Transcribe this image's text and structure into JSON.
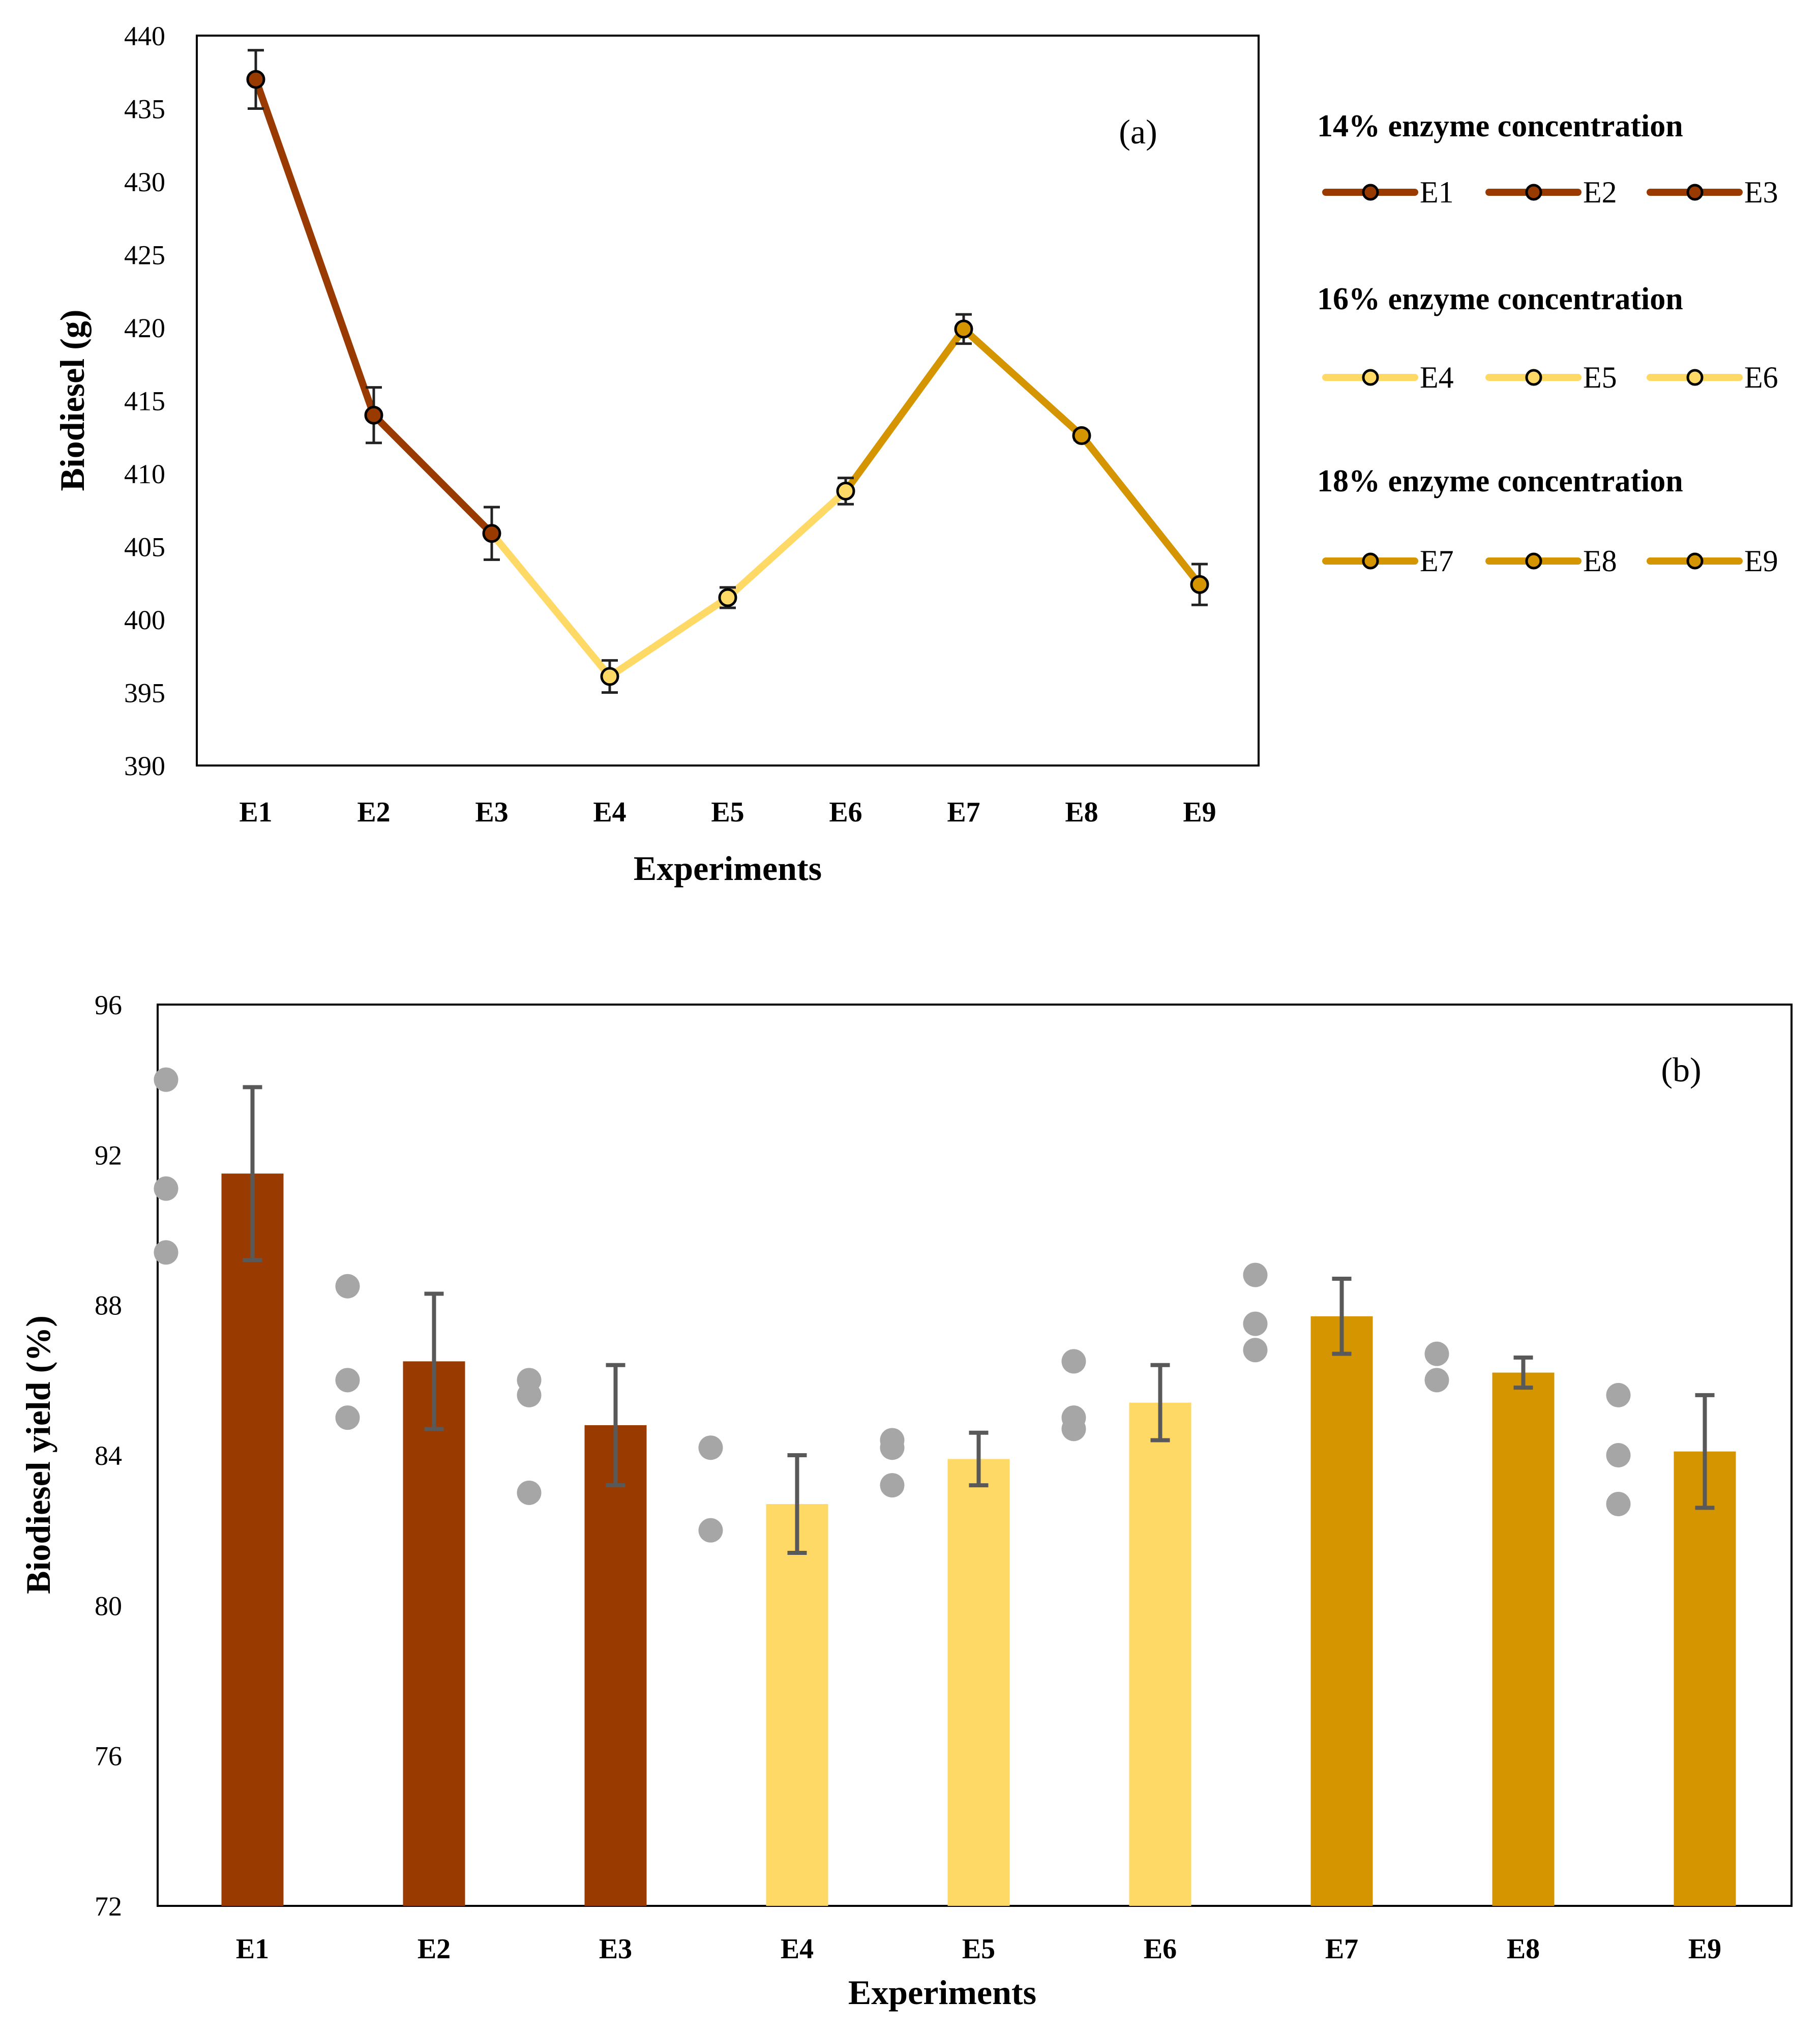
{
  "colors": {
    "group1": "#993A00",
    "group2": "#FFD966",
    "group3": "#D49500",
    "scatter": "#A6A6A6",
    "errbar_b": "#595959",
    "errbar_a": "#222222"
  },
  "chart_data": [
    {
      "type": "line",
      "panel_label": "(a)",
      "xlabel": "Experiments",
      "ylabel": "Biodiesel (g)",
      "ylim": [
        390,
        440
      ],
      "yticks": [
        "390",
        "395",
        "400",
        "405",
        "410",
        "415",
        "420",
        "425",
        "430",
        "435",
        "440"
      ],
      "categories": [
        "E1",
        "E2",
        "E3",
        "E4",
        "E5",
        "E6",
        "E7",
        "E8",
        "E9"
      ],
      "values": [
        437.0,
        414.0,
        405.9,
        396.1,
        401.5,
        408.8,
        419.9,
        412.6,
        402.4
      ],
      "errors": [
        2.0,
        1.9,
        1.8,
        1.1,
        0.7,
        0.9,
        1.0,
        0.3,
        1.4
      ],
      "groups": [
        0,
        0,
        0,
        1,
        1,
        1,
        2,
        2,
        2
      ],
      "legend": [
        {
          "title": "14% enzyme concentration",
          "items": [
            "E1",
            "E2",
            "E3"
          ]
        },
        {
          "title": "16% enzyme concentration",
          "items": [
            "E4",
            "E5",
            "E6"
          ]
        },
        {
          "title": "18% enzyme concentration",
          "items": [
            "E7",
            "E8",
            "E9"
          ]
        }
      ],
      "legend_position": "right"
    },
    {
      "type": "bar",
      "panel_label": "(b)",
      "xlabel": "Experiments",
      "ylabel": "Biodiesel yield (%)",
      "ylim": [
        72,
        96
      ],
      "yticks": [
        "72",
        "76",
        "80",
        "84",
        "88",
        "92",
        "96"
      ],
      "categories": [
        "E1",
        "E2",
        "E3",
        "E4",
        "E5",
        "E6",
        "E7",
        "E8",
        "E9"
      ],
      "values": [
        91.5,
        86.5,
        84.8,
        82.7,
        83.9,
        85.4,
        87.7,
        86.2,
        84.1
      ],
      "errors": [
        2.3,
        1.8,
        1.6,
        1.3,
        0.7,
        1.0,
        1.0,
        0.4,
        1.5
      ],
      "groups": [
        0,
        0,
        0,
        1,
        1,
        1,
        2,
        2,
        2
      ],
      "replicates": [
        [
          94.0,
          91.1,
          89.4
        ],
        [
          88.5,
          86.0,
          85.0
        ],
        [
          86.0,
          85.6,
          83.0
        ],
        [
          84.2,
          82.0
        ],
        [
          84.4,
          84.2,
          83.2
        ],
        [
          86.5,
          85.0,
          84.7
        ],
        [
          88.8,
          87.5,
          86.8
        ],
        [
          86.7,
          86.0
        ],
        [
          85.6,
          84.0,
          82.7
        ]
      ]
    }
  ]
}
